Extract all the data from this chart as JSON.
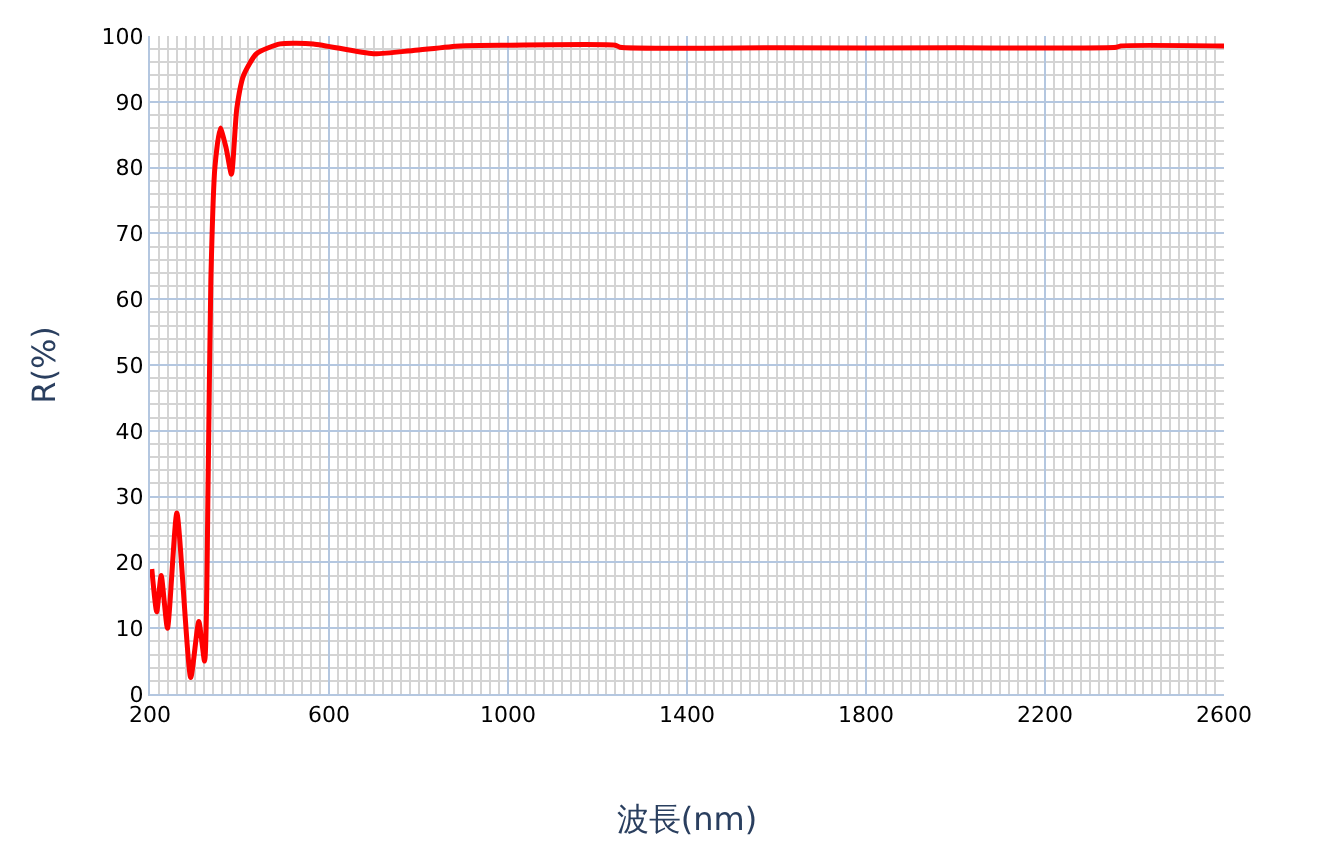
{
  "chart_data": {
    "type": "line",
    "xlabel": "波長(nm)",
    "ylabel": "R(%)",
    "x": [
      204,
      215,
      225,
      239,
      260,
      291,
      309,
      322,
      330,
      336,
      345,
      357,
      370,
      382,
      394,
      409,
      438,
      491,
      565,
      699,
      788,
      893,
      1000,
      1240,
      1250,
      1600,
      2000,
      2360,
      2370,
      2600
    ],
    "series": [
      {
        "color": "#ff0000",
        "values": [
          19,
          12.5,
          18,
          10,
          27.5,
          2.5,
          11,
          5,
          33,
          63,
          80,
          86,
          83,
          79,
          89,
          94,
          97.3,
          98.8,
          98.8,
          97.3,
          97.8,
          98.5,
          98.6,
          98.6,
          98.3,
          98.2,
          98.2,
          98.3,
          98.5,
          98.5
        ]
      }
    ],
    "xlim": [
      200,
      2600
    ],
    "xticks": [
      200,
      600,
      1000,
      1400,
      1800,
      2200,
      2600
    ],
    "ylim": [
      0,
      100
    ],
    "yticks": [
      0,
      10,
      20,
      30,
      40,
      50,
      60,
      70,
      80,
      90,
      100
    ],
    "grid": true,
    "legend": false,
    "marker": "none",
    "line_style": "solid"
  }
}
